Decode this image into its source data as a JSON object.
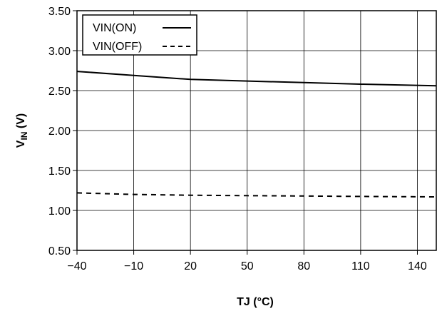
{
  "chart_data": {
    "type": "line",
    "title": "",
    "xlabel": "TJ (°C)",
    "ylabel_main": "V",
    "ylabel_sub": "IN",
    "ylabel_unit": " (V)",
    "xlim": [
      -40,
      150
    ],
    "ylim": [
      0.5,
      3.5
    ],
    "x_ticks": [
      -40,
      -10,
      20,
      50,
      80,
      110,
      140
    ],
    "x_tick_labels": [
      "−40",
      "−10",
      "20",
      "50",
      "80",
      "110",
      "140"
    ],
    "y_ticks": [
      0.5,
      1.0,
      1.5,
      2.0,
      2.5,
      3.0,
      3.5
    ],
    "y_tick_labels": [
      "0.50",
      "1.00",
      "1.50",
      "2.00",
      "2.50",
      "3.00",
      "3.50"
    ],
    "grid": true,
    "legend_position": "top-left",
    "series": [
      {
        "name": "VIN(ON)",
        "style": "solid",
        "color": "#000000",
        "x": [
          -40,
          -10,
          20,
          50,
          80,
          110,
          150
        ],
        "y": [
          2.74,
          2.69,
          2.64,
          2.62,
          2.6,
          2.58,
          2.56
        ]
      },
      {
        "name": "VIN(OFF)",
        "style": "dashed",
        "color": "#000000",
        "x": [
          -40,
          -10,
          20,
          50,
          80,
          110,
          150
        ],
        "y": [
          1.22,
          1.2,
          1.19,
          1.185,
          1.18,
          1.175,
          1.17
        ]
      }
    ]
  }
}
